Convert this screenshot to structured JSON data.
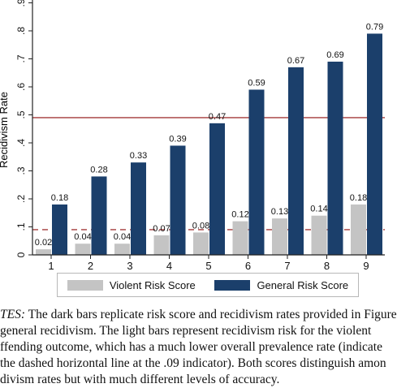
{
  "chart_data": {
    "type": "bar",
    "ylabel": "Recidivism Rate",
    "ylim": [
      0,
      0.9
    ],
    "yticks": [
      0,
      0.1,
      0.2,
      0.3,
      0.4,
      0.5,
      0.6,
      0.7,
      0.8,
      0.9
    ],
    "ytick_labels": [
      "0",
      ".1",
      ".2",
      ".3",
      ".4",
      ".5",
      ".6",
      ".7",
      ".8",
      ".9"
    ],
    "categories": [
      "1",
      "2",
      "3",
      "4",
      "5",
      "6",
      "7",
      "8",
      "9"
    ],
    "series": [
      {
        "name": "Violent Risk Score",
        "color": "#c4c4c4",
        "values": [
          0.02,
          0.04,
          0.04,
          0.07,
          0.08,
          0.12,
          0.13,
          0.14,
          0.18
        ],
        "labels": [
          "0.02",
          "0.04",
          "0.04",
          "0.07",
          "0.08",
          "0.12",
          "0.13",
          "0.14",
          "0.18"
        ]
      },
      {
        "name": "General Risk Score",
        "color": "#1b3f6b",
        "values": [
          0.18,
          0.28,
          0.33,
          0.39,
          0.47,
          0.59,
          0.67,
          0.69,
          0.79
        ],
        "labels": [
          "0.18",
          "0.28",
          "0.33",
          "0.39",
          "0.47",
          "0.59",
          "0.67",
          "0.69",
          "0.79"
        ]
      }
    ],
    "reference_lines": [
      {
        "value": 0.49,
        "style": "solid",
        "color": "#a33a3a"
      },
      {
        "value": 0.09,
        "style": "dashed",
        "color": "#a33a3a"
      }
    ],
    "grid": false,
    "legend": "bottom"
  },
  "notes": {
    "lead": "TES:",
    "lines": [
      " The dark bars replicate risk score and recidivism rates provided in Figure",
      "general recidivism. The light bars represent recidivism risk for the violent",
      "ffending outcome, which has a much lower overall prevalence rate (indicate",
      "the dashed horizontal line at the .09 indicator). Both scores distinguish amon",
      "divism rates but with much different levels of accuracy."
    ]
  }
}
